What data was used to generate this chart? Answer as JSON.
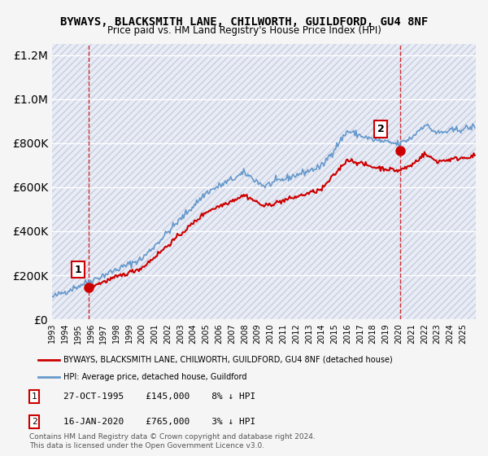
{
  "title": "BYWAYS, BLACKSMITH LANE, CHILWORTH, GUILDFORD, GU4 8NF",
  "subtitle": "Price paid vs. HM Land Registry's House Price Index (HPI)",
  "sale1_date": "1995-10-27",
  "sale1_price": 145000,
  "sale1_label": "1",
  "sale1_note": "27-OCT-1995    £145,000    8% ↓ HPI",
  "sale2_date": "2020-01-16",
  "sale2_price": 765000,
  "sale2_label": "2",
  "sale2_note": "16-JAN-2020    £765,000    3% ↓ HPI",
  "legend_line1": "BYWAYS, BLACKSMITH LANE, CHILWORTH, GUILDFORD, GU4 8NF (detached house)",
  "legend_line2": "HPI: Average price, detached house, Guildford",
  "footnote": "Contains HM Land Registry data © Crown copyright and database right 2024.\nThis data is licensed under the Open Government Licence v3.0.",
  "ylim": [
    0,
    1250000
  ],
  "yticks": [
    0,
    200000,
    400000,
    600000,
    800000,
    1000000,
    1200000
  ],
  "sale_color": "#cc0000",
  "hpi_color": "#6699cc",
  "bg_color": "#e8e8f0",
  "plot_bg": "#f0f0f8",
  "grid_color": "#ffffff",
  "hatch_color": "#d0d0e0"
}
